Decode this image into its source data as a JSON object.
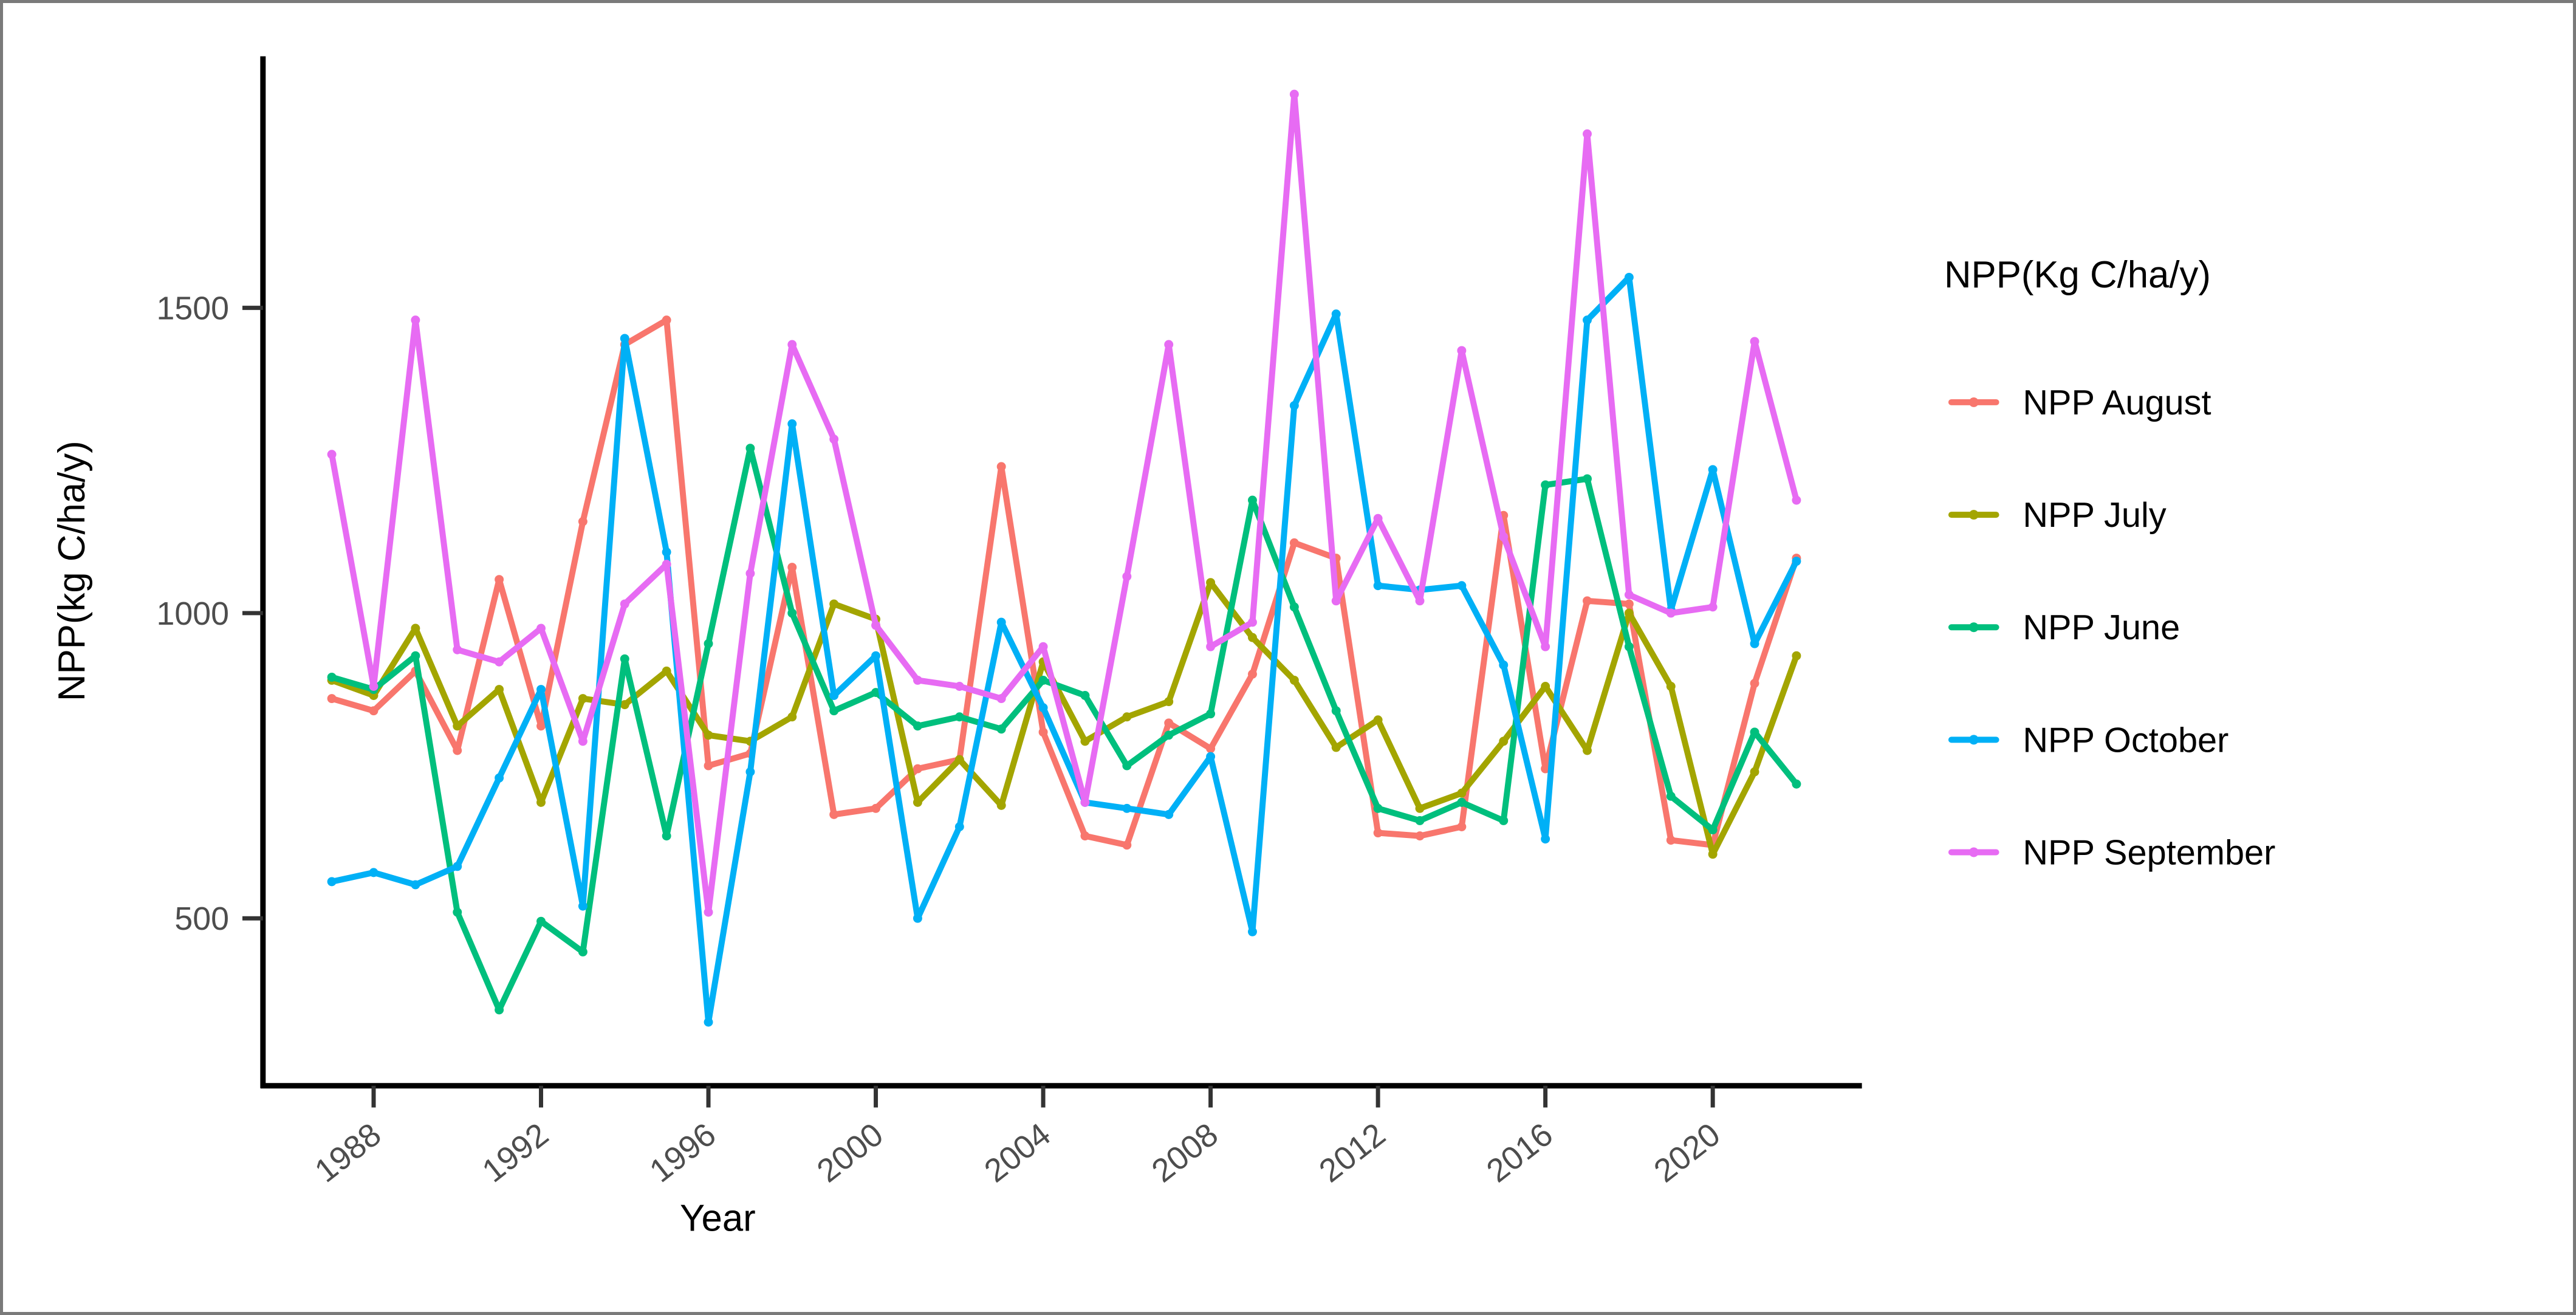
{
  "frame": {
    "background": "#ffffff",
    "border_color": "#7a7a7a",
    "axis_line_color": "#000000",
    "tick_color": "#333333",
    "tick_label_color": "#4d4d4d",
    "title_color": "#000000"
  },
  "chart_data": {
    "type": "line",
    "title": "",
    "xlabel": "Year",
    "ylabel": "NPP(kg C/ha/y)",
    "x": [
      1987,
      1988,
      1989,
      1990,
      1991,
      1992,
      1993,
      1994,
      1995,
      1996,
      1997,
      1998,
      1999,
      2000,
      2001,
      2002,
      2003,
      2004,
      2005,
      2006,
      2007,
      2008,
      2009,
      2010,
      2011,
      2012,
      2013,
      2014,
      2015,
      2016,
      2017,
      2018,
      2019,
      2020,
      2021,
      2022
    ],
    "xticks": [
      1988,
      1992,
      1996,
      2000,
      2004,
      2008,
      2012,
      2016,
      2020
    ],
    "yticks": [
      500,
      1000,
      1500
    ],
    "ylim": [
      280,
      1900
    ],
    "xlim": [
      1985.5,
      2023.5
    ],
    "grid": false,
    "legend": {
      "title": "NPP(Kg C/ha/y)",
      "position": "right"
    },
    "series": [
      {
        "name": "NPP August",
        "color": "#F8766D",
        "values": [
          860,
          840,
          905,
          775,
          1055,
          815,
          1150,
          1440,
          1480,
          750,
          770,
          1075,
          670,
          680,
          745,
          760,
          1240,
          805,
          635,
          620,
          820,
          778,
          900,
          1115,
          1090,
          640,
          635,
          650,
          1160,
          745,
          1020,
          1015,
          628,
          620,
          885,
          1090
        ]
      },
      {
        "name": "NPP July",
        "color": "#A3A500",
        "values": [
          890,
          865,
          975,
          815,
          875,
          690,
          860,
          850,
          905,
          800,
          790,
          830,
          1015,
          990,
          690,
          760,
          685,
          920,
          790,
          830,
          855,
          1050,
          960,
          890,
          780,
          825,
          680,
          705,
          790,
          880,
          775,
          1000,
          880,
          605,
          740,
          930
        ]
      },
      {
        "name": "NPP June",
        "color": "#00BF7D",
        "values": [
          895,
          875,
          930,
          510,
          350,
          495,
          445,
          925,
          635,
          950,
          1270,
          1000,
          840,
          870,
          815,
          830,
          810,
          890,
          865,
          750,
          800,
          835,
          1185,
          1010,
          840,
          680,
          660,
          690,
          660,
          1210,
          1220,
          945,
          700,
          645,
          805,
          720
        ]
      },
      {
        "name": "NPP October",
        "color": "#00B0F6",
        "values": [
          560,
          575,
          555,
          585,
          730,
          875,
          520,
          1450,
          1100,
          330,
          740,
          1310,
          865,
          930,
          500,
          650,
          985,
          845,
          690,
          680,
          670,
          765,
          478,
          1340,
          1490,
          1045,
          1038,
          1045,
          915,
          630,
          1480,
          1550,
          1005,
          1235,
          950,
          1085
        ]
      },
      {
        "name": "NPP September",
        "color": "#E76BF3",
        "values": [
          1260,
          880,
          1480,
          940,
          920,
          975,
          790,
          1015,
          1080,
          510,
          1065,
          1440,
          1285,
          980,
          890,
          880,
          860,
          945,
          690,
          1060,
          1440,
          945,
          985,
          1850,
          1020,
          1155,
          1020,
          1430,
          1125,
          945,
          1785,
          1030,
          1000,
          1010,
          1445,
          1185
        ]
      }
    ]
  }
}
